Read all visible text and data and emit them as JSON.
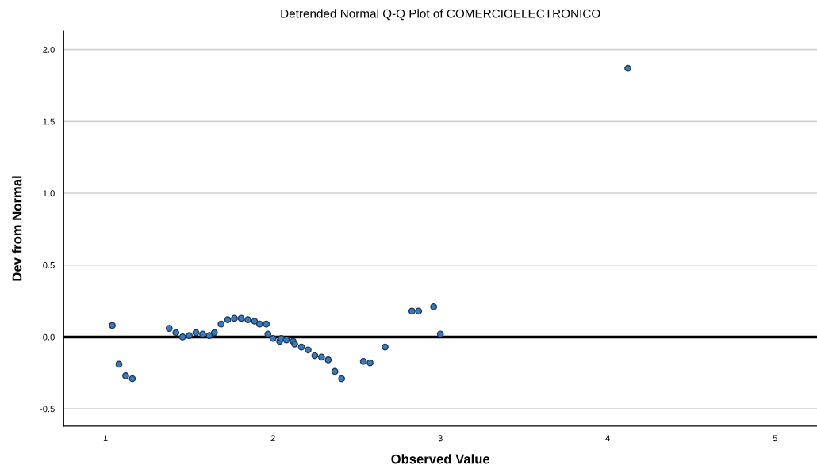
{
  "chart_data": {
    "type": "scatter",
    "title": "Detrended Normal Q-Q Plot of COMERCIOELECTRONICO",
    "xlabel": "Observed Value",
    "ylabel": "Dev from Normal",
    "x": [
      1.04,
      1.08,
      1.12,
      1.16,
      1.38,
      1.42,
      1.46,
      1.5,
      1.54,
      1.58,
      1.62,
      1.65,
      1.69,
      1.73,
      1.77,
      1.81,
      1.85,
      1.89,
      1.92,
      1.96,
      1.97,
      2.0,
      2.04,
      2.05,
      2.08,
      2.12,
      2.13,
      2.17,
      2.21,
      2.25,
      2.29,
      2.33,
      2.37,
      2.41,
      2.54,
      2.58,
      2.67,
      2.83,
      2.87,
      2.96,
      3.0,
      4.12
    ],
    "series": [
      {
        "color": "#3a7bbf",
        "values": [
          0.08,
          -0.19,
          -0.27,
          -0.29,
          0.06,
          0.03,
          0.0,
          0.01,
          0.03,
          0.02,
          0.01,
          0.03,
          0.09,
          0.12,
          0.13,
          0.13,
          0.12,
          0.11,
          0.09,
          0.09,
          0.02,
          -0.01,
          -0.03,
          -0.01,
          -0.02,
          -0.03,
          -0.05,
          -0.07,
          -0.09,
          -0.13,
          -0.14,
          -0.16,
          -0.24,
          -0.29,
          -0.17,
          -0.18,
          -0.07,
          0.18,
          0.18,
          0.21,
          0.02,
          1.87
        ]
      }
    ],
    "xlim": [
      0.75,
      5.25
    ],
    "xticks": [
      1,
      2,
      3,
      4,
      5
    ],
    "ylim": [
      -0.62,
      2.13
    ],
    "yticks": [
      {
        "value": -0.5,
        "label": "-0.5"
      },
      {
        "value": 0,
        "label": "0.0"
      },
      {
        "value": 0.5,
        "label": "0.5"
      },
      {
        "value": 1,
        "label": "1.0"
      },
      {
        "value": 1.5,
        "label": "1.5"
      },
      {
        "value": 2,
        "label": "2.0"
      }
    ],
    "grid": "y",
    "marker": "circle",
    "ref_lines": [
      {
        "axis": "y",
        "value": 0,
        "color": "#000000"
      }
    ]
  }
}
